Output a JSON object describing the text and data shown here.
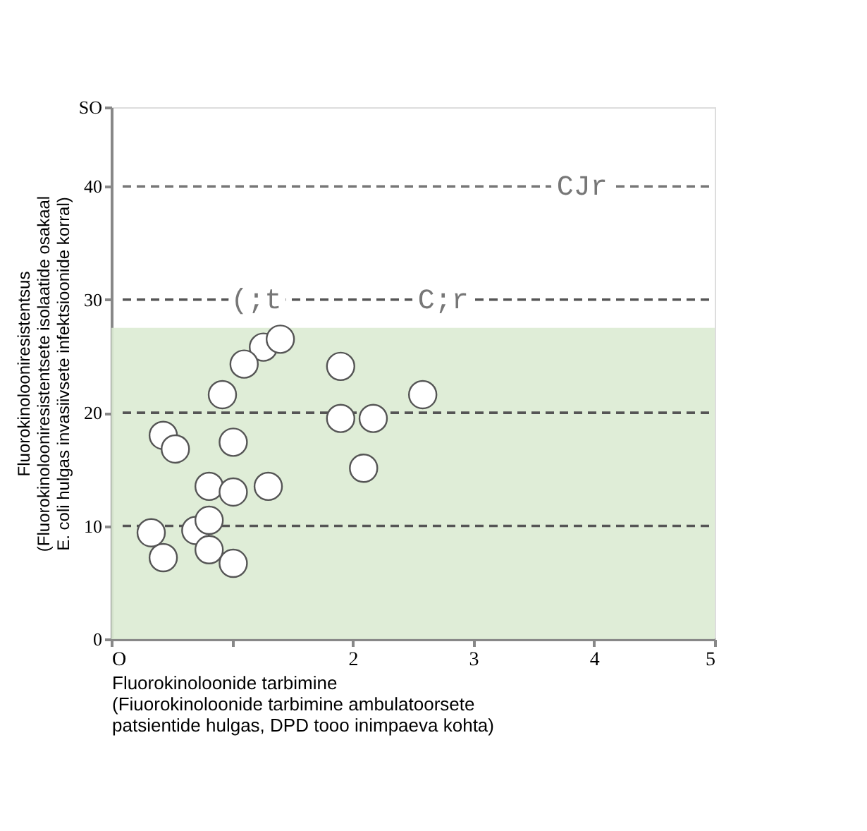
{
  "chart_data": {
    "type": "scatter",
    "xlabel": "Fluorokinoloonide tarbimine\n(Fiuorokinoloonide tarbimine ambulatoorsete\npatsientide hulgas, DPD tooo inimpaeva kohta)",
    "ylabel": "Fluorokinolooniresistentsus\n(Fluorokinolooniresistentsete isolaatide osakaal\nE. coli hulgas invasiivsete infektsioonide korral)",
    "x": [
      1.26,
      1.4,
      1.1,
      0.92,
      1.9,
      1.9,
      2.17,
      2.58,
      2.09,
      0.43,
      0.53,
      1.01,
      0.81,
      1.01,
      1.3,
      0.33,
      0.43,
      0.7,
      0.81,
      0.81,
      1.01
    ],
    "values": [
      25.8,
      26.5,
      24.3,
      21.6,
      24.1,
      19.5,
      19.5,
      21.6,
      15.1,
      18.0,
      16.8,
      17.4,
      13.5,
      13.0,
      13.5,
      9.4,
      7.2,
      9.6,
      10.5,
      7.9,
      6.7
    ],
    "color": "#ffffff",
    "marker": "circle",
    "xlim": [
      0,
      5
    ],
    "ylim": [
      0,
      47
    ],
    "xticks": [
      {
        "value": 0,
        "label": "O"
      },
      {
        "value": 1,
        "label": null
      },
      2,
      3,
      4,
      5
    ],
    "yticks": [
      0,
      10,
      20,
      30,
      40,
      {
        "value": 47,
        "label": "SO"
      }
    ],
    "grid": false,
    "ref_lines": [
      {
        "axis": "y",
        "value": 10,
        "color": "#555555",
        "line_style": "dashed"
      },
      {
        "axis": "y",
        "value": 20,
        "color": "#555555",
        "line_style": "dashed"
      },
      {
        "axis": "y",
        "value": 30,
        "color": "#555555",
        "line_style": "dashed"
      },
      {
        "axis": "y",
        "value": 40,
        "color": "#777777",
        "line_style": "dashed"
      }
    ],
    "bands": [
      {
        "axis": "y",
        "from": 0,
        "to": 27.5,
        "color": "#dcebd3"
      }
    ],
    "annotations": [
      {
        "text": "(;t",
        "x": 1.2,
        "y": 30
      },
      {
        "text": "C;r",
        "x": 2.75,
        "y": 30
      },
      {
        "text": "CJr",
        "x": 3.9,
        "y": 40
      }
    ]
  }
}
